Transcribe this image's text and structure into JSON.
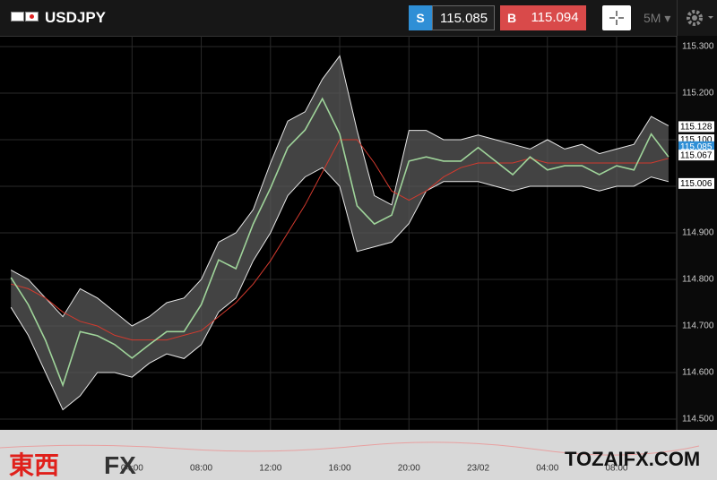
{
  "header": {
    "symbol": "USDJPY",
    "sell_tag": "S",
    "sell": "115.085",
    "buy_tag": "B",
    "buy": "115.094",
    "timeframe": "5M"
  },
  "watermark": {
    "left": "東西",
    "left_fx": "FX",
    "right": "TOZAIFX.COM"
  },
  "chart_data": {
    "type": "line",
    "x": [
      -3,
      -2,
      -1,
      0,
      1,
      2,
      3,
      4,
      5,
      6,
      7,
      8,
      9,
      10,
      11,
      12,
      13,
      14,
      15,
      16,
      17,
      18,
      19,
      20,
      21,
      22,
      23,
      24,
      25,
      26,
      27,
      28,
      29,
      30,
      31,
      32,
      33,
      34,
      35
    ],
    "series": [
      {
        "name": "Upper band",
        "color": "#e6e6e6",
        "values": [
          114.82,
          114.8,
          114.76,
          114.72,
          114.78,
          114.76,
          114.73,
          114.7,
          114.72,
          114.75,
          114.76,
          114.8,
          114.88,
          114.9,
          114.95,
          115.05,
          115.14,
          115.16,
          115.23,
          115.28,
          115.12,
          114.98,
          114.96,
          115.12,
          115.12,
          115.1,
          115.1,
          115.11,
          115.1,
          115.09,
          115.08,
          115.1,
          115.08,
          115.09,
          115.07,
          115.08,
          115.09,
          115.15,
          115.13
        ]
      },
      {
        "name": "Lower band",
        "color": "#e6e6e6",
        "values": [
          114.74,
          114.68,
          114.6,
          114.52,
          114.55,
          114.6,
          114.6,
          114.59,
          114.62,
          114.64,
          114.63,
          114.66,
          114.73,
          114.76,
          114.84,
          114.9,
          114.98,
          115.02,
          115.04,
          115.0,
          114.86,
          114.87,
          114.88,
          114.92,
          114.99,
          115.01,
          115.01,
          115.01,
          115.0,
          114.99,
          115.0,
          115.0,
          115.0,
          115.0,
          114.99,
          115.0,
          115.0,
          115.02,
          115.01
        ]
      },
      {
        "name": "Moving average",
        "color": "#d23a2e",
        "values": [
          114.79,
          114.78,
          114.76,
          114.73,
          114.71,
          114.7,
          114.68,
          114.67,
          114.67,
          114.67,
          114.68,
          114.69,
          114.72,
          114.75,
          114.79,
          114.84,
          114.9,
          114.96,
          115.03,
          115.1,
          115.1,
          115.05,
          114.99,
          114.97,
          114.99,
          115.02,
          115.04,
          115.05,
          115.05,
          115.05,
          115.06,
          115.05,
          115.05,
          115.05,
          115.05,
          115.05,
          115.05,
          115.05,
          115.06
        ]
      },
      {
        "name": "Price",
        "color": "#9fd49a",
        "values": [
          114.804,
          114.746,
          114.669,
          114.573,
          114.688,
          114.679,
          114.66,
          114.631,
          114.66,
          114.688,
          114.688,
          114.746,
          114.842,
          114.823,
          114.919,
          114.996,
          115.083,
          115.121,
          115.188,
          115.112,
          114.958,
          114.919,
          114.938,
          115.054,
          115.063,
          115.054,
          115.054,
          115.083,
          115.054,
          115.025,
          115.063,
          115.035,
          115.044,
          115.044,
          115.025,
          115.044,
          115.035,
          115.112,
          115.063
        ]
      }
    ],
    "xlim": [
      -3.63,
      35.47
    ],
    "xticks": [
      {
        "value": 4,
        "label": "04:00"
      },
      {
        "value": 8,
        "label": "08:00"
      },
      {
        "value": 12,
        "label": "12:00"
      },
      {
        "value": 16,
        "label": "16:00"
      },
      {
        "value": 20,
        "label": "20:00"
      },
      {
        "value": 24,
        "label": "23/02"
      },
      {
        "value": 28,
        "label": "04:00"
      },
      {
        "value": 32,
        "label": "08:00"
      }
    ],
    "ylim": [
      114.477,
      115.323
    ],
    "yticks": [
      {
        "value": 114.5,
        "label": "114.500"
      },
      {
        "value": 114.6,
        "label": "114.600"
      },
      {
        "value": 114.7,
        "label": "114.700"
      },
      {
        "value": 114.8,
        "label": "114.800"
      },
      {
        "value": 114.9,
        "label": "114.900"
      },
      {
        "value": 115.0,
        "label": "115.000"
      },
      {
        "value": 115.1,
        "label": "115.100"
      },
      {
        "value": 115.2,
        "label": "115.200"
      },
      {
        "value": 115.3,
        "label": "115.300"
      }
    ],
    "grid": true,
    "price_markers": [
      {
        "value": 115.128,
        "label": "115.128",
        "color": "#ffffff"
      },
      {
        "value": 115.1,
        "label": "115.100",
        "color": "#ffffff"
      },
      {
        "value": 115.085,
        "label": "115.085",
        "color": "#2f8fd6"
      },
      {
        "value": 115.067,
        "label": "115.067",
        "color": "#ffffff"
      },
      {
        "value": 115.006,
        "label": "115.006",
        "color": "#ffffff"
      }
    ]
  }
}
